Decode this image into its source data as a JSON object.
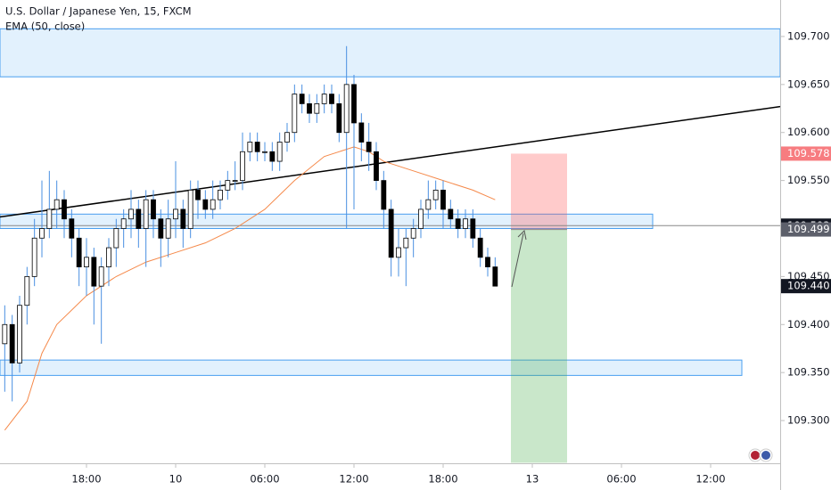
{
  "chart_data": {
    "type": "candlestick",
    "title": "U.S. Dollar / Japanese Yen, 15, FXCM",
    "x": [
      12.5,
      13,
      13.5,
      14,
      14.5,
      15,
      15.5,
      16,
      16.5,
      17,
      17.5,
      18,
      18.5,
      19,
      19.5,
      20,
      20.5,
      21,
      21.5,
      22,
      22.5,
      23,
      23.5,
      24,
      24.5,
      25,
      25.5,
      26,
      26.5,
      27,
      27.5,
      28,
      28.5,
      29,
      29.5,
      30,
      30.5,
      31,
      31.5,
      32,
      32.5,
      33,
      33.5,
      34,
      34.5,
      35,
      35.5,
      36,
      36.5,
      37,
      37.5,
      38,
      38.5,
      39,
      39.5,
      40,
      40.5,
      41,
      41.5,
      42,
      42.5,
      43,
      43.5,
      44,
      44.5,
      45,
      45.5
    ],
    "open": [
      109.38,
      109.4,
      109.36,
      109.42,
      109.45,
      109.49,
      109.5,
      109.52,
      109.53,
      109.51,
      109.49,
      109.46,
      109.47,
      109.44,
      109.46,
      109.48,
      109.5,
      109.51,
      109.52,
      109.5,
      109.53,
      109.51,
      109.49,
      109.51,
      109.52,
      109.5,
      109.54,
      109.53,
      109.52,
      109.53,
      109.54,
      109.55,
      109.55,
      109.58,
      109.59,
      109.58,
      109.58,
      109.57,
      109.59,
      109.6,
      109.64,
      109.63,
      109.62,
      109.63,
      109.64,
      109.63,
      109.6,
      109.65,
      109.61,
      109.59,
      109.58,
      109.55,
      109.52,
      109.47,
      109.48,
      109.49,
      109.5,
      109.52,
      109.53,
      109.54,
      109.52,
      109.51,
      109.5,
      109.51,
      109.49,
      109.47,
      109.46
    ],
    "high": [
      109.42,
      109.41,
      109.43,
      109.46,
      109.51,
      109.55,
      109.56,
      109.55,
      109.54,
      109.52,
      109.5,
      109.49,
      109.48,
      109.47,
      109.49,
      109.51,
      109.52,
      109.54,
      109.53,
      109.54,
      109.54,
      109.52,
      109.53,
      109.57,
      109.53,
      109.55,
      109.55,
      109.54,
      109.55,
      109.55,
      109.56,
      109.57,
      109.6,
      109.6,
      109.6,
      109.59,
      109.59,
      109.6,
      109.61,
      109.65,
      109.65,
      109.64,
      109.64,
      109.65,
      109.65,
      109.64,
      109.69,
      109.66,
      109.62,
      109.61,
      109.59,
      109.56,
      109.53,
      109.5,
      109.5,
      109.51,
      109.53,
      109.55,
      109.55,
      109.55,
      109.53,
      109.52,
      109.52,
      109.52,
      109.5,
      109.48,
      109.47
    ],
    "low": [
      109.33,
      109.32,
      109.35,
      109.4,
      109.44,
      109.47,
      109.49,
      109.5,
      109.49,
      109.47,
      109.44,
      109.43,
      109.4,
      109.38,
      109.44,
      109.46,
      109.48,
      109.49,
      109.48,
      109.46,
      109.49,
      109.46,
      109.47,
      109.49,
      109.48,
      109.49,
      109.51,
      109.51,
      109.51,
      109.52,
      109.53,
      109.54,
      109.54,
      109.57,
      109.57,
      109.57,
      109.56,
      109.56,
      109.58,
      109.59,
      109.62,
      109.61,
      109.61,
      109.62,
      109.62,
      109.59,
      109.5,
      109.52,
      109.57,
      109.56,
      109.54,
      109.5,
      109.45,
      109.45,
      109.44,
      109.47,
      109.49,
      109.51,
      109.52,
      109.5,
      109.5,
      109.49,
      109.49,
      109.48,
      109.46,
      109.45,
      109.44
    ],
    "close": [
      109.4,
      109.36,
      109.42,
      109.45,
      109.49,
      109.5,
      109.52,
      109.53,
      109.51,
      109.49,
      109.46,
      109.47,
      109.44,
      109.46,
      109.48,
      109.5,
      109.51,
      109.52,
      109.5,
      109.53,
      109.51,
      109.49,
      109.51,
      109.52,
      109.5,
      109.54,
      109.53,
      109.52,
      109.53,
      109.54,
      109.55,
      109.55,
      109.58,
      109.59,
      109.58,
      109.58,
      109.57,
      109.59,
      109.6,
      109.64,
      109.63,
      109.62,
      109.63,
      109.64,
      109.63,
      109.6,
      109.65,
      109.61,
      109.59,
      109.58,
      109.55,
      109.52,
      109.47,
      109.48,
      109.49,
      109.5,
      109.52,
      109.53,
      109.54,
      109.52,
      109.51,
      109.5,
      109.51,
      109.49,
      109.47,
      109.46,
      109.44
    ],
    "up_color": "#ffffff",
    "down_color": "#000000",
    "wick_color": "#4a90e2",
    "ema": {
      "name": "EMA (50, close)",
      "color": "#f5894a",
      "x": [
        12.5,
        14,
        15,
        16,
        18,
        20,
        22,
        24,
        26,
        28,
        30,
        32,
        34,
        36,
        37,
        38,
        40,
        42,
        44,
        45.5
      ],
      "values": [
        109.29,
        109.32,
        109.37,
        109.4,
        109.43,
        109.45,
        109.465,
        109.475,
        109.485,
        109.5,
        109.52,
        109.55,
        109.575,
        109.585,
        109.58,
        109.57,
        109.56,
        109.55,
        109.54,
        109.53
      ]
    },
    "zones": [
      {
        "from": 109.658,
        "to": 109.708,
        "x0": 12.18,
        "x1": 64.68
      },
      {
        "from": 109.5,
        "to": 109.515,
        "x0": 12.18,
        "x1": 56.1
      },
      {
        "from": 109.347,
        "to": 109.363,
        "x0": 12.18,
        "x1": 62.1
      }
    ],
    "trendline": {
      "x": [
        12.18,
        64.68
      ],
      "values": [
        109.512,
        109.627
      ]
    },
    "position": {
      "x0": 46.56,
      "x1": 50.34,
      "entry": 109.499,
      "stop": 109.578,
      "target": 109.256
    },
    "price_labels": [
      {
        "price": 109.578,
        "color": "#f77c80"
      },
      {
        "price": 109.503,
        "color": "#131722",
        "line": true
      },
      {
        "price": 109.499,
        "color": "#5d606b"
      },
      {
        "price": {
          "value": 109.44,
          "label": "109.440"
        },
        "color": "#131722"
      }
    ],
    "xlim": [
      12.18,
      64.68
    ],
    "ylim": [
      109.2555,
      109.738
    ],
    "xticks": [
      {
        "value": 18,
        "label": "18:00"
      },
      {
        "value": 24,
        "label": "10"
      },
      {
        "value": 30,
        "label": "06:00"
      },
      {
        "value": 36,
        "label": "12:00"
      },
      {
        "value": 42,
        "label": "18:00"
      },
      {
        "value": 48,
        "label": "13"
      },
      {
        "value": 54,
        "label": "06:00"
      },
      {
        "value": 60,
        "label": "12:00"
      }
    ],
    "yticks": [
      {
        "value": 109.3,
        "label": "109.300"
      },
      {
        "value": 109.35,
        "label": "109.350"
      },
      {
        "value": 109.4,
        "label": "109.400"
      },
      {
        "value": 109.45,
        "label": "109.450"
      },
      {
        "value": 109.5,
        "label": "109.500"
      },
      {
        "value": 109.55,
        "label": "109.550"
      },
      {
        "value": 109.6,
        "label": "109.600"
      },
      {
        "value": 109.65,
        "label": "109.650"
      },
      {
        "value": 109.7,
        "label": "109.700"
      }
    ]
  }
}
